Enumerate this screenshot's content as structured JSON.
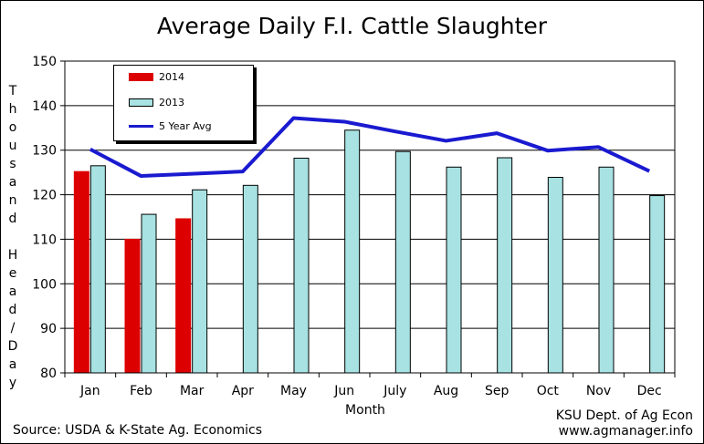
{
  "title": "Average Daily F.I. Cattle Slaughter",
  "footer": {
    "source": "Source:  USDA & K-State Ag. Economics",
    "credit_dept": "KSU Dept. of Ag Econ",
    "credit_site": "www.agmanager.info"
  },
  "colors": {
    "s2014": "#dd0000",
    "s2013": "#a8e2e2",
    "avg": "#1a1ad0",
    "plot_border": "#000000"
  },
  "chart_data": {
    "type": "bar",
    "title": "Average Daily F.I. Cattle Slaughter",
    "xlabel": "Month",
    "ylabel": "Thousand Head/Day",
    "ylim": [
      80,
      150
    ],
    "yticks": [
      80,
      90,
      100,
      110,
      120,
      130,
      140,
      150
    ],
    "grid": true,
    "legend_position": "top-left",
    "categories": [
      "Jan",
      "Feb",
      "Mar",
      "Apr",
      "May",
      "Jun",
      "July",
      "Aug",
      "Sep",
      "Oct",
      "Nov",
      "Dec"
    ],
    "series": [
      {
        "name": "2014",
        "kind": "bar",
        "values": [
          125.3,
          110.1,
          114.7,
          null,
          null,
          null,
          null,
          null,
          null,
          null,
          null,
          null
        ]
      },
      {
        "name": "2013",
        "kind": "bar",
        "values": [
          126.5,
          115.6,
          121.1,
          122.1,
          128.2,
          134.5,
          129.7,
          126.2,
          128.3,
          123.9,
          126.2,
          119.8
        ]
      },
      {
        "name": "5 Year Avg",
        "kind": "line",
        "values": [
          130.2,
          124.2,
          124.7,
          125.2,
          137.2,
          136.4,
          134.2,
          132.1,
          133.8,
          129.9,
          130.7,
          125.3
        ]
      }
    ]
  }
}
